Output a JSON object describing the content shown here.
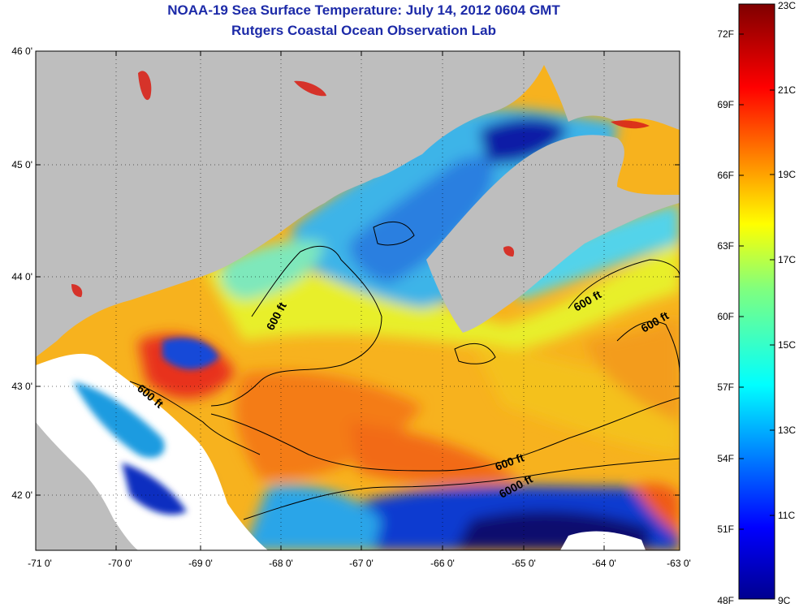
{
  "title": "NOAA-19 Sea Surface Temperature:  July 14, 2012 0604 GMT",
  "subtitle": "Rutgers Coastal Ocean Observation Lab",
  "colors": {
    "land": "#bebebe",
    "cloud": "#ffffff",
    "contour": "#000000",
    "title": "#1c2aa8"
  },
  "x_ticks": [
    "-71 0'",
    "-70 0'",
    "-69 0'",
    "-68 0'",
    "-67 0'",
    "-66 0'",
    "-65 0'",
    "-64 0'",
    "-63 0'"
  ],
  "y_ticks": [
    "46 0'",
    "45 0'",
    "44 0'",
    "43 0'",
    "42 0'"
  ],
  "colorbar": {
    "fahrenheit": [
      "72F",
      "69F",
      "66F",
      "63F",
      "60F",
      "57F",
      "54F",
      "51F",
      "48F"
    ],
    "celsius": [
      "23C",
      "21C",
      "19C",
      "17C",
      "15C",
      "13C",
      "11C",
      "9C"
    ]
  },
  "contour_labels": [
    {
      "id": "c1",
      "text": "600 ft"
    },
    {
      "id": "c2",
      "text": "600 ft"
    },
    {
      "id": "c3",
      "text": "600 ft"
    },
    {
      "id": "c4",
      "text": "600 ft"
    },
    {
      "id": "c5",
      "text": "600 ft"
    },
    {
      "id": "c6",
      "text": "6000 ft"
    }
  ]
}
